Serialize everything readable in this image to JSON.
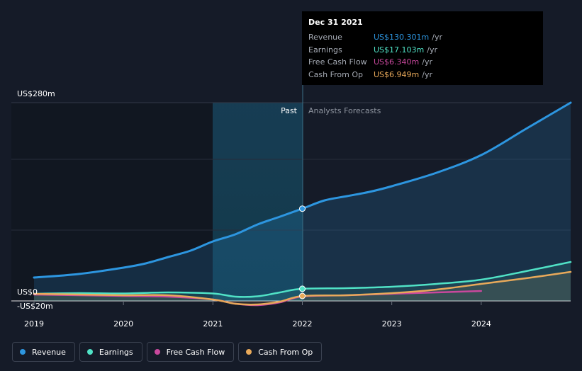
{
  "chart_data": {
    "type": "line",
    "y_axis": {
      "top_label": "US$280m",
      "zero_label": "US$0",
      "bottom_label": "-US$20m",
      "ylim": [
        -20,
        280
      ]
    },
    "x_axis": {
      "ticks": [
        "2019",
        "2020",
        "2021",
        "2022",
        "2023",
        "2024"
      ],
      "xlim": [
        2019.0,
        2025.0
      ]
    },
    "regions": {
      "past_label": "Past",
      "forecast_label": "Analysts Forecasts",
      "divider_x": 2022.0,
      "past_highlight_start": 2021.0
    },
    "series": [
      {
        "name": "Revenue",
        "color": "#2d96e0",
        "x": [
          2019.0,
          2019.5,
          2020.0,
          2020.25,
          2020.5,
          2020.75,
          2021.0,
          2021.25,
          2021.5,
          2021.75,
          2022.0,
          2022.25,
          2022.5,
          2022.75,
          2023.0,
          2023.5,
          2024.0,
          2024.5,
          2025.0
        ],
        "values": [
          33,
          38,
          47,
          53,
          62,
          71,
          84,
          94,
          108,
          119,
          130.3,
          142,
          148,
          154,
          162,
          181,
          206,
          243,
          280
        ]
      },
      {
        "name": "Earnings",
        "color": "#50e2c6",
        "x": [
          2019.0,
          2019.5,
          2020.0,
          2020.5,
          2021.0,
          2021.25,
          2021.5,
          2021.75,
          2022.0,
          2022.5,
          2023.0,
          2023.5,
          2024.0,
          2024.5,
          2025.0
        ],
        "values": [
          10,
          11,
          10.5,
          12,
          10.5,
          6,
          6.5,
          12,
          17.1,
          18,
          20,
          24,
          30,
          42,
          55
        ]
      },
      {
        "name": "Free Cash Flow",
        "color": "#c9489d",
        "x": [
          2019.0,
          2019.5,
          2020.0,
          2020.5,
          2021.0,
          2021.25,
          2021.5,
          2021.75,
          2022.0,
          2022.5,
          2023.0,
          2023.5,
          2024.0
        ],
        "values": [
          9,
          8,
          7,
          6,
          2,
          -4,
          -6,
          -2,
          6.34,
          8,
          10,
          12,
          14
        ]
      },
      {
        "name": "Cash From Op",
        "color": "#e8a95a",
        "x": [
          2019.0,
          2019.5,
          2020.0,
          2020.5,
          2021.0,
          2021.25,
          2021.5,
          2021.75,
          2022.0,
          2022.5,
          2023.0,
          2023.5,
          2024.0,
          2024.5,
          2025.0
        ],
        "values": [
          10,
          9,
          8,
          8,
          2,
          -4,
          -5,
          -1,
          6.95,
          8,
          11,
          16,
          24,
          32,
          41
        ]
      }
    ]
  },
  "tooltip": {
    "date": "Dec 31 2021",
    "rows": [
      {
        "name": "Revenue",
        "value": "US$130.301m",
        "unit": "/yr",
        "color": "#2d96e0"
      },
      {
        "name": "Earnings",
        "value": "US$17.103m",
        "unit": "/yr",
        "color": "#50e2c6"
      },
      {
        "name": "Free Cash Flow",
        "value": "US$6.340m",
        "unit": "/yr",
        "color": "#c9489d"
      },
      {
        "name": "Cash From Op",
        "value": "US$6.949m",
        "unit": "/yr",
        "color": "#e8a95a"
      }
    ]
  },
  "legend": [
    {
      "label": "Revenue",
      "color": "#2d96e0"
    },
    {
      "label": "Earnings",
      "color": "#50e2c6"
    },
    {
      "label": "Free Cash Flow",
      "color": "#c9489d"
    },
    {
      "label": "Cash From Op",
      "color": "#e8a95a"
    }
  ]
}
